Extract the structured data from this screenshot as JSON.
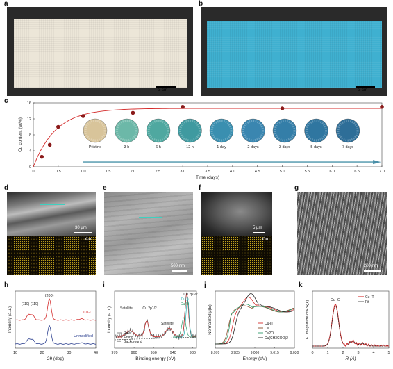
{
  "panels": {
    "a": {
      "label": "a",
      "scale": "3 cm"
    },
    "b": {
      "label": "b",
      "scale": "3 cm"
    },
    "c": {
      "label": "c"
    },
    "d": {
      "label": "d",
      "scale": "30 µm",
      "element": "Cu"
    },
    "e": {
      "label": "e",
      "scale": "500 nm"
    },
    "f": {
      "label": "f",
      "scale": "5 µm",
      "element": "Cu"
    },
    "g": {
      "label": "g",
      "scale": "200 nm"
    },
    "h": {
      "label": "h"
    },
    "i": {
      "label": "i"
    },
    "j": {
      "label": "j"
    },
    "k": {
      "label": "k"
    }
  },
  "colors": {
    "fabric_white": "#ece6d8",
    "fabric_blue": "#3fb0d0",
    "red": "#d42b2b",
    "dark_red": "#8b1a1a",
    "blue": "#2b3f8f",
    "green": "#2e9a6a",
    "teal": "#1fb0b0"
  },
  "chart_data": [
    {
      "id": "c",
      "type": "scatter",
      "xlabel": "Time (days)",
      "ylabel": "Cu content (wt%)",
      "xlim": [
        0,
        7.0
      ],
      "ylim": [
        0,
        16
      ],
      "xticks": [
        "0",
        "0.5",
        "1.0",
        "1.5",
        "2.0",
        "2.5",
        "3.0",
        "3.5",
        "4.0",
        "4.5",
        "5.0",
        "5.5",
        "6.0",
        "6.5",
        "7.0"
      ],
      "yticks": [
        "0",
        "4",
        "8",
        "12",
        "16"
      ],
      "x": [
        0.17,
        0.33,
        0.5,
        1.0,
        2.0,
        3.0,
        5.0,
        7.0
      ],
      "y": [
        2.5,
        5.5,
        10.0,
        12.7,
        13.5,
        15.0,
        14.6,
        15.0
      ],
      "inset_labels": [
        "Pristine",
        "3 h",
        "6 h",
        "12 h",
        "1 day",
        "2 days",
        "3 days",
        "5 days",
        "7 days"
      ]
    },
    {
      "id": "h",
      "type": "line",
      "xlabel": "2θ (deg)",
      "ylabel": "Intensity (a.u.)",
      "xlim": [
        10,
        40
      ],
      "xticks": [
        "10",
        "20",
        "30",
        "40"
      ],
      "annotations": [
        "(200)",
        "(110)",
        "(110)"
      ],
      "series": [
        {
          "name": "Cu-IT"
        },
        {
          "name": "Unmodified"
        }
      ]
    },
    {
      "id": "i",
      "type": "line",
      "xlabel": "Binding energy (eV)",
      "ylabel": "Intensity (a.u.)",
      "xticks": [
        "970",
        "960",
        "950",
        "940",
        "930"
      ],
      "annotations": [
        "Satellite",
        "Cu 2p1/2",
        "Satellite",
        "Cu 2p3/2",
        "Cu(I)",
        "Cu(II)"
      ],
      "series": [
        {
          "name": "Raw"
        },
        {
          "name": "Fitting"
        },
        {
          "name": "Background"
        }
      ]
    },
    {
      "id": "j",
      "type": "line",
      "xlabel": "Energy (eV)",
      "ylabel": "Normalized μ(E)",
      "xticks": [
        "8,970",
        "8,985",
        "9,000",
        "9,015",
        "9,030"
      ],
      "series": [
        {
          "name": "Cu-IT"
        },
        {
          "name": "Cu"
        },
        {
          "name": "Cu2O"
        },
        {
          "name": "Cu(CH3COO)2"
        }
      ]
    },
    {
      "id": "k",
      "type": "line",
      "xlabel": "R (Å)",
      "ylabel": "FT magnitude of k3χ(k)",
      "xlim": [
        0,
        5
      ],
      "xticks": [
        "0",
        "1",
        "2",
        "3",
        "4",
        "5"
      ],
      "annotations": [
        "Cu–O"
      ],
      "series": [
        {
          "name": "Cu-IT"
        },
        {
          "name": "Fit"
        }
      ]
    }
  ]
}
